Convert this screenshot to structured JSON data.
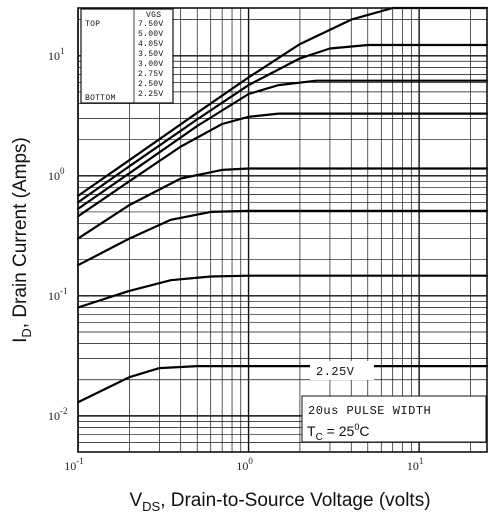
{
  "chart_data": {
    "type": "line",
    "x_scale": "log",
    "y_scale": "log",
    "xlim": [
      0.1,
      25
    ],
    "ylim": [
      0.005,
      25
    ],
    "xlabel": {
      "main": "V",
      "sub": "DS",
      "rest": ", Drain-to-Source Voltage (volts)"
    },
    "ylabel": {
      "main": "I",
      "sub": "D",
      "rest": ", Drain Current (Amps)"
    },
    "x_ticks": [
      {
        "value": 0.1,
        "base": "10",
        "exp": "-1"
      },
      {
        "value": 1,
        "base": "10",
        "exp": "0"
      },
      {
        "value": 10,
        "base": "10",
        "exp": "1"
      }
    ],
    "y_ticks": [
      {
        "value": 0.01,
        "base": "10",
        "exp": "-2"
      },
      {
        "value": 0.1,
        "base": "10",
        "exp": "-1"
      },
      {
        "value": 1,
        "base": "10",
        "exp": "0"
      },
      {
        "value": 10,
        "base": "10",
        "exp": "1"
      }
    ],
    "grid": true,
    "legend": {
      "placement": "top-left",
      "header": "VGS",
      "top_label": "TOP",
      "bottom_label": "BOTTOM",
      "entries": [
        "7.50V",
        "5.00V",
        "4.05V",
        "3.50V",
        "3.00V",
        "2.75V",
        "2.50V",
        "2.25V"
      ]
    },
    "annotations": {
      "curve_label": "2.25V",
      "pulse": "20us PULSE WIDTH",
      "tc_main": "T",
      "tc_sub": "C",
      "tc_eq": " = 25",
      "tc_sup": "0",
      "tc_unit": "C"
    },
    "series": [
      {
        "vgs": "7.50V",
        "x": [
          0.1,
          0.2,
          0.5,
          1,
          2,
          4,
          7,
          25
        ],
        "y": [
          0.68,
          1.35,
          3.35,
          6.6,
          12.5,
          20,
          25,
          25
        ]
      },
      {
        "vgs": "5.00V",
        "x": [
          0.1,
          0.2,
          0.5,
          1,
          2,
          3,
          5,
          25
        ],
        "y": [
          0.6,
          1.2,
          2.95,
          5.7,
          9.5,
          11.5,
          12.3,
          12.3
        ]
      },
      {
        "vgs": "4.05V",
        "x": [
          0.1,
          0.2,
          0.5,
          1,
          1.5,
          2.5,
          25
        ],
        "y": [
          0.53,
          1.05,
          2.6,
          4.8,
          5.7,
          6.2,
          6.2
        ]
      },
      {
        "vgs": "3.50V",
        "x": [
          0.1,
          0.2,
          0.4,
          0.7,
          1,
          1.5,
          25
        ],
        "y": [
          0.46,
          0.9,
          1.75,
          2.7,
          3.1,
          3.3,
          3.3
        ]
      },
      {
        "vgs": "3.00V",
        "x": [
          0.1,
          0.2,
          0.4,
          0.7,
          1,
          25
        ],
        "y": [
          0.3,
          0.57,
          0.95,
          1.12,
          1.15,
          1.15
        ]
      },
      {
        "vgs": "2.75V",
        "x": [
          0.1,
          0.2,
          0.35,
          0.6,
          1,
          25
        ],
        "y": [
          0.18,
          0.3,
          0.43,
          0.5,
          0.51,
          0.51
        ]
      },
      {
        "vgs": "2.50V",
        "x": [
          0.1,
          0.2,
          0.35,
          0.6,
          1,
          25
        ],
        "y": [
          0.08,
          0.11,
          0.135,
          0.145,
          0.147,
          0.147
        ]
      },
      {
        "vgs": "2.25V",
        "x": [
          0.1,
          0.2,
          0.3,
          0.5,
          25
        ],
        "y": [
          0.013,
          0.021,
          0.025,
          0.026,
          0.026
        ]
      }
    ]
  }
}
